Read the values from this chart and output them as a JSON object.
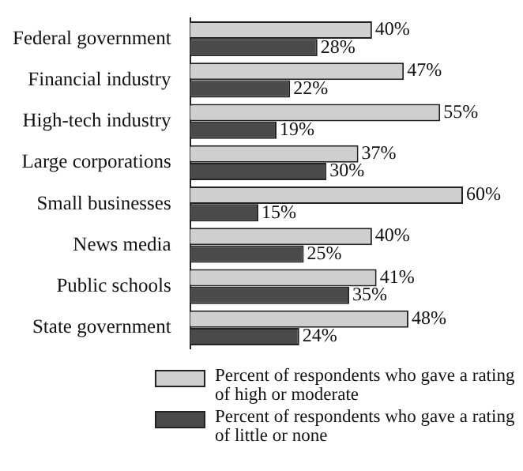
{
  "chart_data": {
    "type": "bar",
    "orientation": "horizontal",
    "categories": [
      "Federal government",
      "Financial industry",
      "High-tech industry",
      "Large corporations",
      "Small businesses",
      "News media",
      "Public schools",
      "State government"
    ],
    "series": [
      {
        "name": "Percent of respondents who gave a rating of high or moderate",
        "color": "#cfcfcf",
        "values": [
          40,
          47,
          55,
          37,
          60,
          40,
          41,
          48
        ],
        "value_labels": [
          "40%",
          "47%",
          "55%",
          "37%",
          "60%",
          "40%",
          "41%",
          "48%"
        ]
      },
      {
        "name": "Percent of respondents who gave a rating of little or none",
        "color": "#4a4a4a",
        "values": [
          28,
          22,
          19,
          30,
          15,
          25,
          35,
          24
        ],
        "value_labels": [
          "28%",
          "22%",
          "19%",
          "30%",
          "15%",
          "25%",
          "35%",
          "24%"
        ]
      }
    ],
    "legend": "bottom"
  }
}
